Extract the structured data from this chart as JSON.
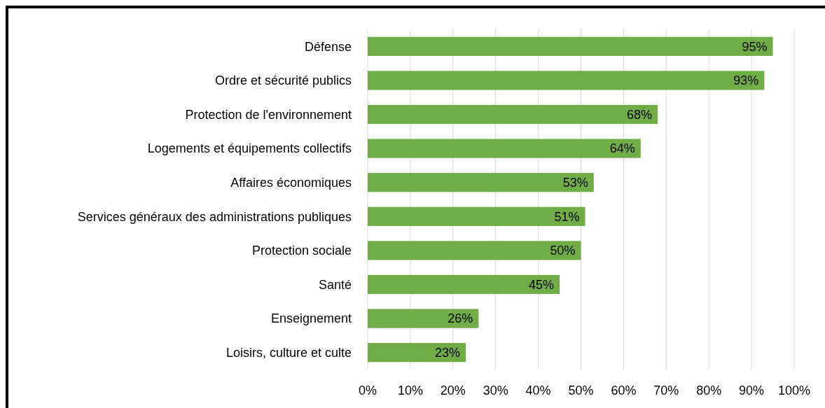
{
  "chart_data": {
    "type": "bar",
    "orientation": "horizontal",
    "categories": [
      "Défense",
      "Ordre et sécurité publics",
      "Protection de l'environnement",
      "Logements et équipements collectifs",
      "Affaires économiques",
      "Services généraux des administrations publiques",
      "Protection sociale",
      "Santé",
      "Enseignement",
      "Loisirs, culture et culte"
    ],
    "values": [
      95,
      93,
      68,
      64,
      53,
      51,
      50,
      45,
      26,
      23
    ],
    "value_labels": [
      "95%",
      "93%",
      "68%",
      "64%",
      "53%",
      "51%",
      "50%",
      "45%",
      "26%",
      "23%"
    ],
    "color": "#70ad47",
    "xlim": [
      0,
      100
    ],
    "xticks": [
      {
        "value": 0,
        "label": "0%"
      },
      {
        "value": 10,
        "label": "10%"
      },
      {
        "value": 20,
        "label": "20%"
      },
      {
        "value": 30,
        "label": "30%"
      },
      {
        "value": 40,
        "label": "40%"
      },
      {
        "value": 50,
        "label": "50%"
      },
      {
        "value": 60,
        "label": "60%"
      },
      {
        "value": 70,
        "label": "70%"
      },
      {
        "value": 80,
        "label": "80%"
      },
      {
        "value": 90,
        "label": "90%"
      },
      {
        "value": 100,
        "label": "100%"
      }
    ],
    "grid": "x"
  }
}
